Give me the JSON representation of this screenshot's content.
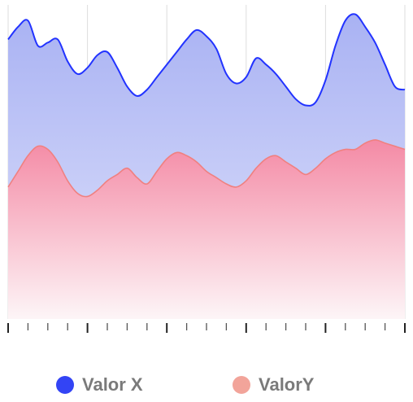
{
  "chart_data": {
    "type": "area",
    "x": [
      0,
      0.5,
      1,
      1.5,
      2,
      2.5,
      3,
      3.5,
      4,
      4.5,
      5,
      5.5,
      6,
      6.5,
      7,
      7.5,
      8,
      8.5,
      9,
      9.5,
      10,
      10.5,
      11,
      11.5,
      12,
      12.5,
      13,
      13.5,
      14,
      14.5,
      15,
      15.5,
      16,
      16.5,
      17,
      17.5,
      18,
      18.5,
      19,
      19.5,
      20
    ],
    "xlim": [
      0,
      20
    ],
    "ylim": [
      0,
      100
    ],
    "grid": "vertical",
    "legend_position": "bottom",
    "series": [
      {
        "name": "Valor X",
        "color": "#2233ff",
        "values": [
          89,
          93,
          95,
          87,
          88,
          89,
          82,
          78,
          80,
          84,
          85,
          80,
          74,
          71,
          73,
          77,
          81,
          85,
          89,
          92,
          90,
          86,
          78,
          75,
          77,
          83,
          81,
          78,
          74,
          70,
          68,
          69,
          76,
          87,
          95,
          97,
          93,
          88,
          81,
          74,
          73
        ]
      },
      {
        "name": "ValorY",
        "color": "#f08080",
        "values": [
          42,
          47,
          52,
          55,
          54,
          50,
          44,
          40,
          39,
          41,
          44,
          46,
          48,
          45,
          43,
          47,
          51,
          53,
          52,
          50,
          47,
          45,
          43,
          42,
          44,
          48,
          51,
          52,
          50,
          48,
          46,
          48,
          51,
          53,
          54,
          54,
          56,
          57,
          56,
          55,
          54
        ]
      }
    ]
  }
}
